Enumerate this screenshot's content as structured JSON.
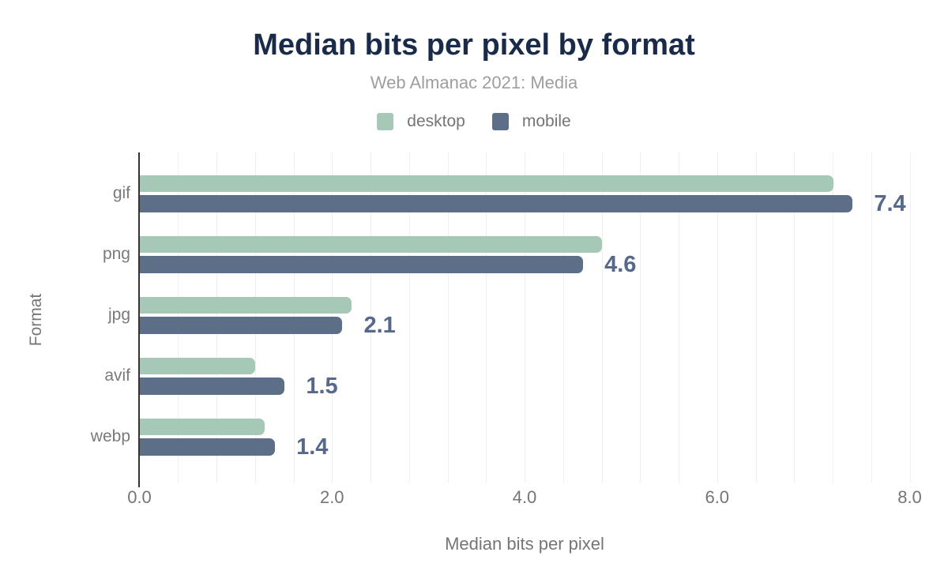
{
  "title": "Median bits per pixel by format",
  "subtitle": "Web Almanac 2021: Media",
  "legend": [
    {
      "label": "desktop",
      "color": "#a5c9b6"
    },
    {
      "label": "mobile",
      "color": "#5d6f88"
    }
  ],
  "chart_data": {
    "type": "bar",
    "orientation": "horizontal",
    "title": "Median bits per pixel by format",
    "subtitle": "Web Almanac 2021: Media",
    "categories": [
      "gif",
      "png",
      "jpg",
      "avif",
      "webp"
    ],
    "series": [
      {
        "name": "desktop",
        "color": "#a5c9b6",
        "values": [
          7.2,
          4.8,
          2.2,
          1.2,
          1.3
        ]
      },
      {
        "name": "mobile",
        "color": "#5d6f88",
        "values": [
          7.4,
          4.6,
          2.1,
          1.5,
          1.4
        ]
      }
    ],
    "bar_labels": [
      "7.4",
      "4.6",
      "2.1",
      "1.5",
      "1.4"
    ],
    "xlabel": "Median bits per pixel",
    "ylabel": "Format",
    "xlim": [
      0,
      8
    ],
    "x_ticks": [
      "0.0",
      "2.0",
      "4.0",
      "6.0",
      "8.0"
    ],
    "grid": "vertical minor gridlines every 0.4 units",
    "legend_position": "top",
    "value_label_color": "#56688c"
  }
}
